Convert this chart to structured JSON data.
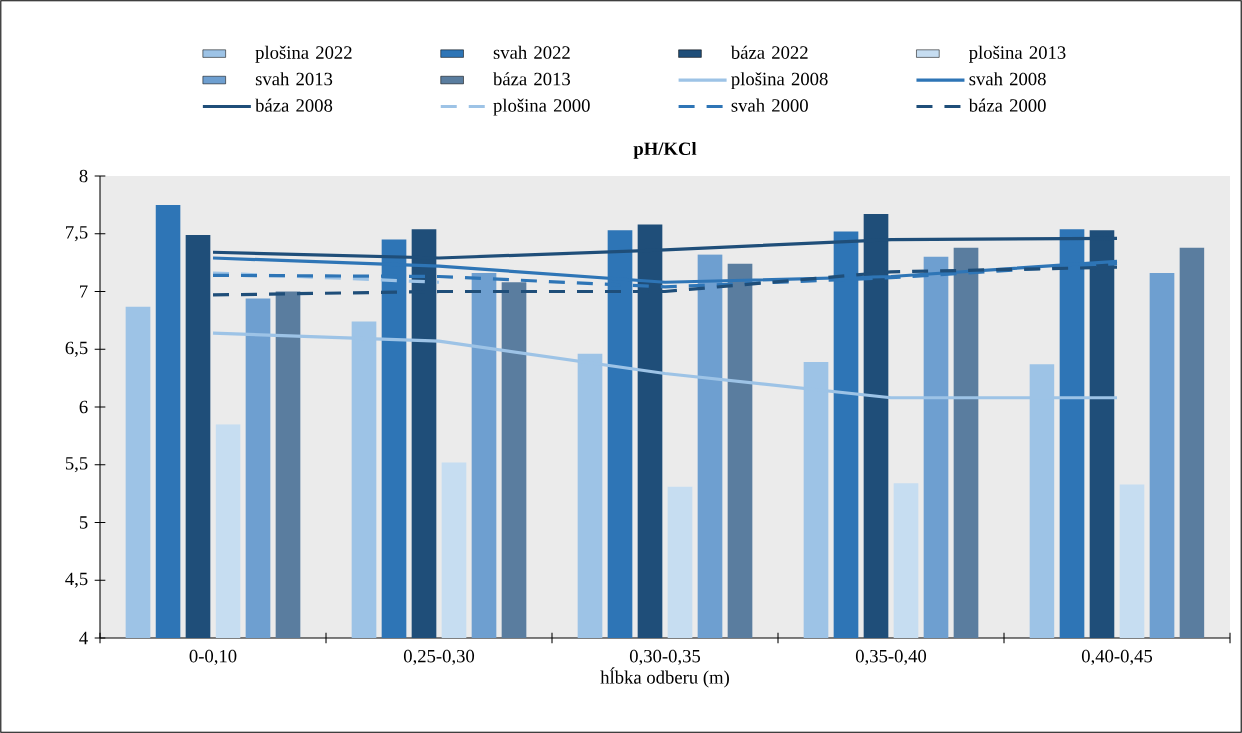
{
  "chart_data": {
    "type": "bar",
    "title": "pH/KCl",
    "xlabel": "hĺbka odberu (m)",
    "categories": [
      "0-0,10",
      "0,25-0,30",
      "0,30-0,35",
      "0,35-0,40",
      "0,40-0,45"
    ],
    "ylim": [
      4,
      8
    ],
    "yticks": [
      4,
      {
        "value": 4.5,
        "label": "4,5"
      },
      5,
      {
        "value": 5.5,
        "label": "5,5"
      },
      6,
      {
        "value": 6.5,
        "label": "6,5"
      },
      7,
      {
        "value": 7.5,
        "label": "7,5"
      },
      8
    ],
    "grid": false,
    "legend": "top",
    "series": [
      {
        "name": "plošina 2022",
        "color": "#9dc3e6",
        "values": [
          6.87,
          6.74,
          6.46,
          6.39,
          6.37
        ]
      },
      {
        "name": "svah 2022",
        "color": "#2e75b6",
        "values": [
          7.75,
          7.45,
          7.53,
          7.52,
          7.54
        ]
      },
      {
        "name": "báza 2022",
        "color": "#1f4e79",
        "values": [
          7.49,
          7.54,
          7.58,
          7.67,
          7.53
        ]
      },
      {
        "name": "plošina 2013",
        "color": "#c6ddf1",
        "values": [
          5.85,
          5.52,
          5.31,
          5.34,
          5.33
        ]
      },
      {
        "name": "svah 2013",
        "color": "#6e9fd0",
        "values": [
          6.94,
          7.16,
          7.32,
          7.3,
          7.16
        ]
      },
      {
        "name": "báza 2013",
        "color": "#5a7d9f",
        "values": [
          7.0,
          7.08,
          7.24,
          7.38,
          7.38
        ]
      },
      {
        "name": "plošina 2008",
        "type": "line",
        "color": "#9dc3e6",
        "line_style": "solid",
        "values": [
          6.64,
          6.57,
          6.29,
          6.08,
          6.08
        ]
      },
      {
        "name": "svah 2008",
        "type": "line",
        "color": "#2e75b6",
        "line_style": "solid",
        "values": [
          7.29,
          7.22,
          7.08,
          7.13,
          7.26
        ]
      },
      {
        "name": "báza 2008",
        "type": "line",
        "color": "#1f4e79",
        "line_style": "solid",
        "values": [
          7.34,
          7.29,
          7.36,
          7.45,
          7.46
        ]
      },
      {
        "name": "plošina 2000",
        "type": "line",
        "color": "#9dc3e6",
        "line_style": "dashed",
        "values": [
          7.16,
          7.08,
          null,
          null,
          null
        ]
      },
      {
        "name": "svah 2000",
        "type": "line",
        "color": "#2e75b6",
        "line_style": "dashed",
        "values": [
          7.14,
          7.13,
          7.04,
          7.12,
          7.24
        ]
      },
      {
        "name": "báza 2000",
        "type": "line",
        "color": "#1f4e79",
        "line_style": "dashed",
        "values": [
          6.97,
          7.0,
          7.0,
          7.17,
          7.21
        ]
      }
    ]
  }
}
